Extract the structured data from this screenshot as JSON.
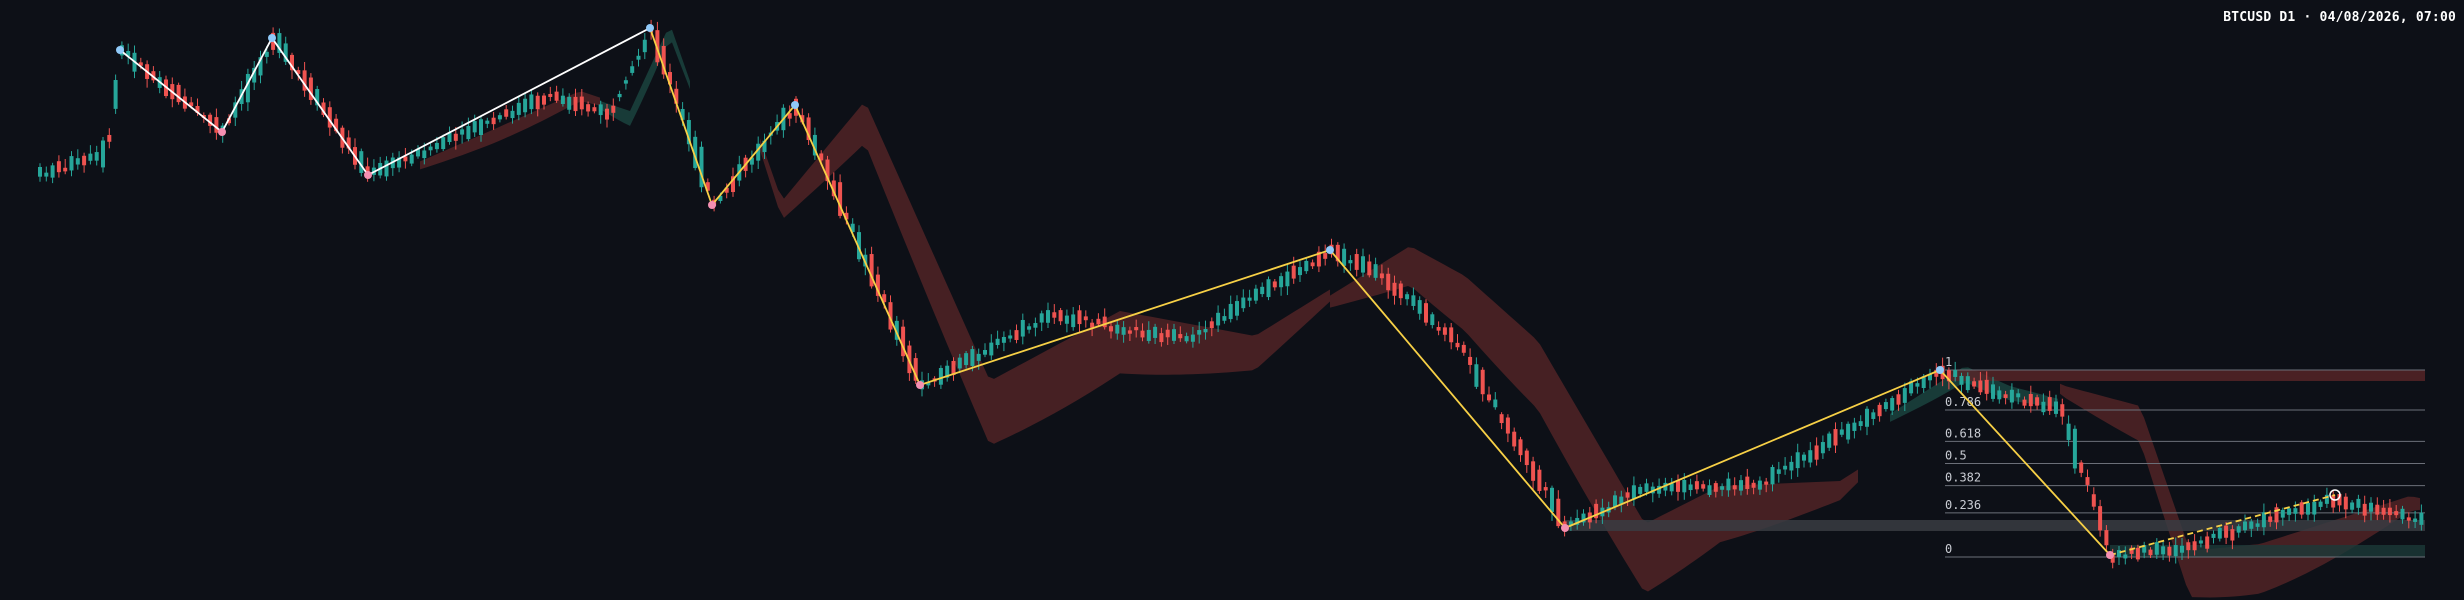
{
  "header": {
    "title": "BTCUSD D1 · 04/08/2026, 07:00"
  },
  "colors": {
    "background": "#0d1017",
    "bull": "#26a69a",
    "bear": "#ef5350",
    "cloud_bear": "#5a2628",
    "cloud_bull": "#1c4a44",
    "zigzag_primary": "#ffffff",
    "zigzag_secondary": "#f7d046",
    "pivot_high": "#90caf9",
    "pivot_low": "#f48fb1",
    "fib_line": "#6b6f78"
  },
  "chart_data": {
    "type": "candlestick",
    "symbol": "BTCUSD",
    "timeframe": "D1",
    "grid": false,
    "legend": "none",
    "fib_levels": [
      {
        "label": "1",
        "value": 1
      },
      {
        "label": "0.786",
        "value": 0.786
      },
      {
        "label": "0.618",
        "value": 0.618
      },
      {
        "label": "0.5",
        "value": 0.5
      },
      {
        "label": "0.382",
        "value": 0.382
      },
      {
        "label": "0.236",
        "value": 0.236
      },
      {
        "label": "0",
        "value": 0
      }
    ]
  }
}
